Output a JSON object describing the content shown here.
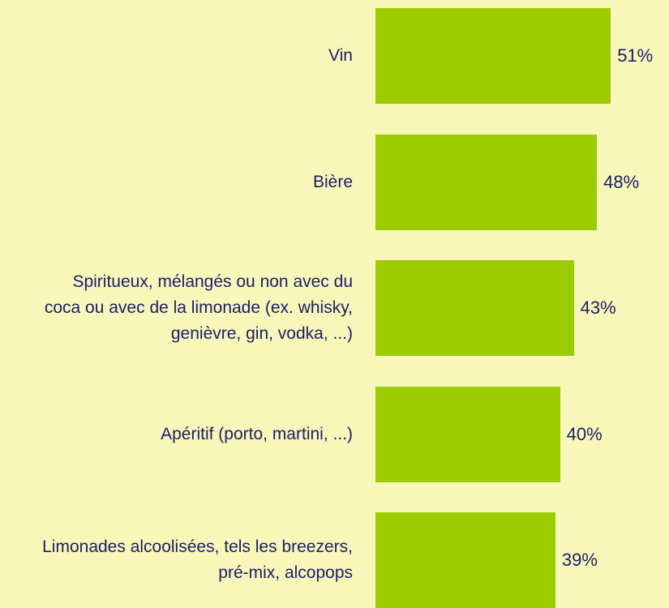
{
  "chart_data": {
    "type": "bar",
    "orientation": "horizontal",
    "color": "#9ccc00",
    "categories": [
      "Vin",
      "Bière",
      "Spiritueux, mélangés ou non avec du coca ou avec de la limonade (ex. whisky, genièvre, gin, vodka, ...)",
      "Apéritif (porto, martini, ...)",
      "Limonades alcoolisées, tels les breezers, pré-mix, alcopops"
    ],
    "values": [
      51,
      48,
      43,
      40,
      39
    ],
    "value_labels": [
      "51%",
      "48%",
      "43%",
      "40%",
      "39%"
    ]
  }
}
